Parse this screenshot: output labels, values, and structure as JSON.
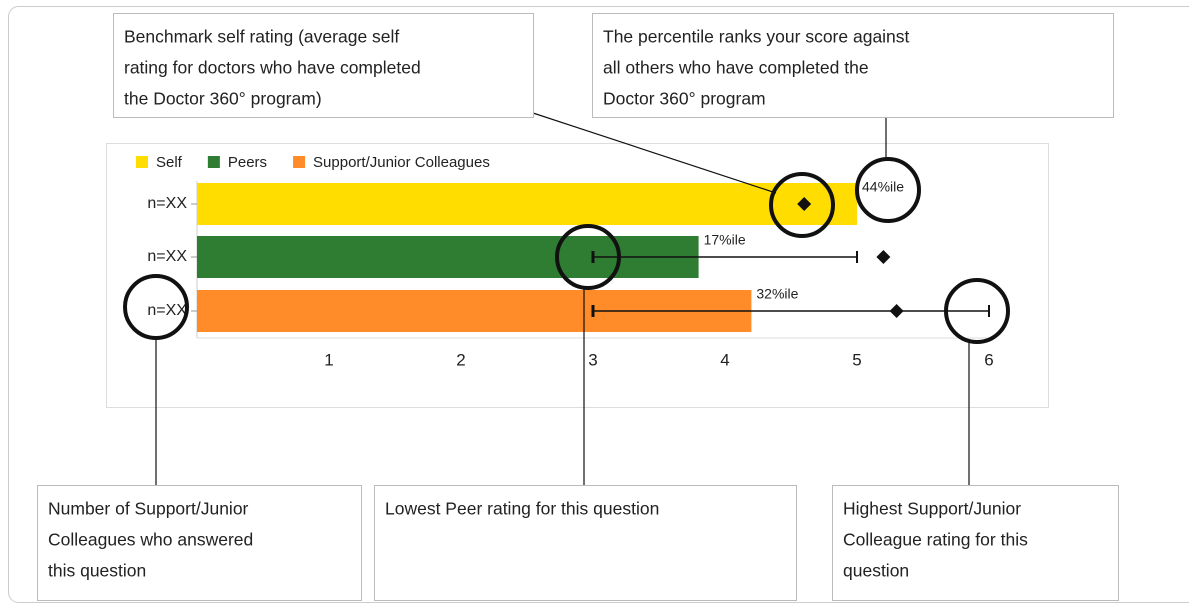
{
  "chart_data": {
    "type": "bar",
    "orientation": "horizontal",
    "categories": [
      "n=XX",
      "n=XX",
      "n=XX"
    ],
    "series": [
      {
        "name": "Self",
        "color": "#ffdd00",
        "values": [
          5.0,
          null,
          null
        ]
      },
      {
        "name": "Peers",
        "color": "#2e7d32",
        "values": [
          null,
          3.8,
          null
        ]
      },
      {
        "name": "Support/Junior Colleagues",
        "color": "#ff8c28",
        "values": [
          null,
          null,
          4.2
        ]
      }
    ],
    "percentile_labels": [
      "44%ile",
      "17%ile",
      "32%ile"
    ],
    "benchmark": [
      4.6,
      5.2,
      5.3
    ],
    "min": [
      null,
      3,
      3
    ],
    "max": [
      null,
      5,
      6
    ],
    "xlim": [
      0,
      6
    ],
    "xticks": [
      1,
      2,
      3,
      4,
      5,
      6
    ],
    "legend": "top-left",
    "annotations": [
      {
        "lines": [
          "Benchmark self rating (average self",
          "rating for doctors who have completed",
          "the Doctor 360° program)"
        ]
      },
      {
        "lines": [
          "The percentile ranks your score against",
          "all others who have completed the",
          "Doctor 360° program"
        ]
      },
      {
        "lines": [
          "Number of Support/Junior",
          "Colleagues who answered",
          "this question"
        ]
      },
      {
        "lines": [
          "Lowest Peer rating for this question"
        ]
      },
      {
        "lines": [
          "Highest Support/Junior",
          "Colleague rating for this",
          "question"
        ]
      }
    ]
  }
}
